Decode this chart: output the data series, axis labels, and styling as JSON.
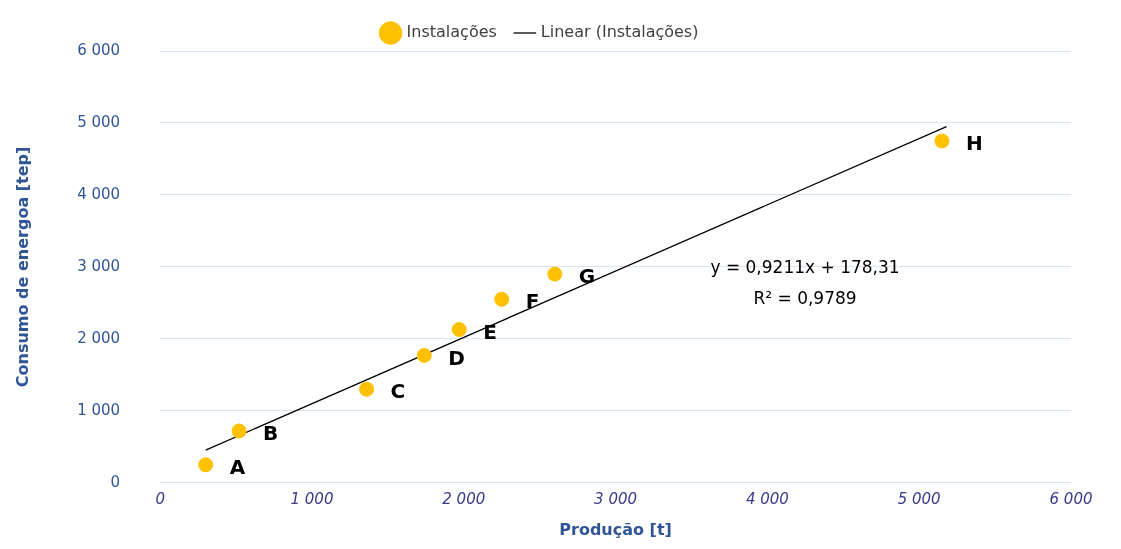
{
  "chart_data": {
    "type": "scatter",
    "xlabel": "Produção [t]",
    "ylabel": "Consumo de energoa [tep]",
    "xlim": [
      0,
      6000
    ],
    "ylim": [
      0,
      6000
    ],
    "xticks": [
      0,
      {
        "value": 1000,
        "label": "1 000"
      },
      {
        "value": 2000,
        "label": "2 000"
      },
      {
        "value": 3000,
        "label": "3 000"
      },
      {
        "value": 4000,
        "label": "4 000"
      },
      {
        "value": 5000,
        "label": "5 000"
      },
      {
        "value": 6000,
        "label": "6 000"
      }
    ],
    "yticks": [
      0,
      {
        "value": 1000,
        "label": "1 000"
      },
      {
        "value": 2000,
        "label": "2 000"
      },
      {
        "value": 3000,
        "label": "3 000"
      },
      {
        "value": 4000,
        "label": "4 000"
      },
      {
        "value": 5000,
        "label": "5 000"
      },
      {
        "value": 6000,
        "label": "6 000"
      }
    ],
    "grid": "y",
    "legend": "top",
    "marker": "circle",
    "series": [
      {
        "name": "Instalações",
        "color": "#ffc000",
        "x": [
          300,
          520,
          1360,
          1740,
          1970,
          2250,
          2600,
          5150
        ],
        "values": [
          250,
          720,
          1300,
          1770,
          2130,
          2550,
          2900,
          4750
        ]
      },
      {
        "name": "Linear (Instalações)",
        "type": "line",
        "color": "#000000",
        "x": [
          300,
          5180
        ],
        "values": [
          455,
          4950
        ],
        "marker": "none",
        "line_style": "solid"
      }
    ],
    "annotations": [
      {
        "text": "A",
        "x": 300,
        "y": 250
      },
      {
        "text": "B",
        "x": 520,
        "y": 720
      },
      {
        "text": "C",
        "x": 1360,
        "y": 1300
      },
      {
        "text": "D",
        "x": 1740,
        "y": 1770
      },
      {
        "text": "E",
        "x": 1970,
        "y": 2130
      },
      {
        "text": "F",
        "x": 2250,
        "y": 2550
      },
      {
        "text": "G",
        "x": 2600,
        "y": 2900
      },
      {
        "text": "H",
        "x": 5150,
        "y": 4750
      },
      "y = 0,9211x + 178,31",
      "R² = 0,9789"
    ]
  }
}
